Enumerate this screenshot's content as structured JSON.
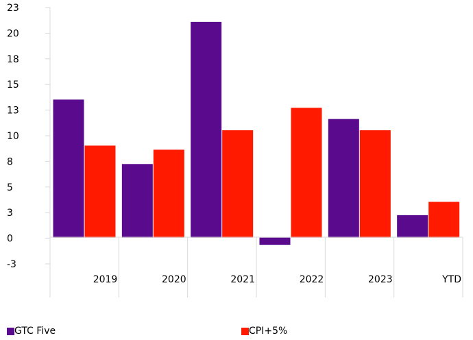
{
  "chart_data": {
    "type": "bar",
    "categories": [
      "2019",
      "2020",
      "2021",
      "2022",
      "2023",
      "YTD"
    ],
    "series": [
      {
        "name": "GTC Five",
        "color": "#5a0a8c",
        "values": [
          13.5,
          7.2,
          21.1,
          -0.7,
          11.6,
          2.2
        ]
      },
      {
        "name": "CPI+5%",
        "color": "#ff1a00",
        "values": [
          9.0,
          8.6,
          10.5,
          12.7,
          10.5,
          3.5
        ]
      }
    ],
    "y_tick_labels": [
      "23",
      "20",
      "18",
      "15",
      "13",
      "10",
      "8",
      "5",
      "3",
      "0",
      "-3"
    ],
    "ylim": [
      -2.5,
      22.5
    ],
    "grid": false,
    "legend_position": "bottom"
  }
}
